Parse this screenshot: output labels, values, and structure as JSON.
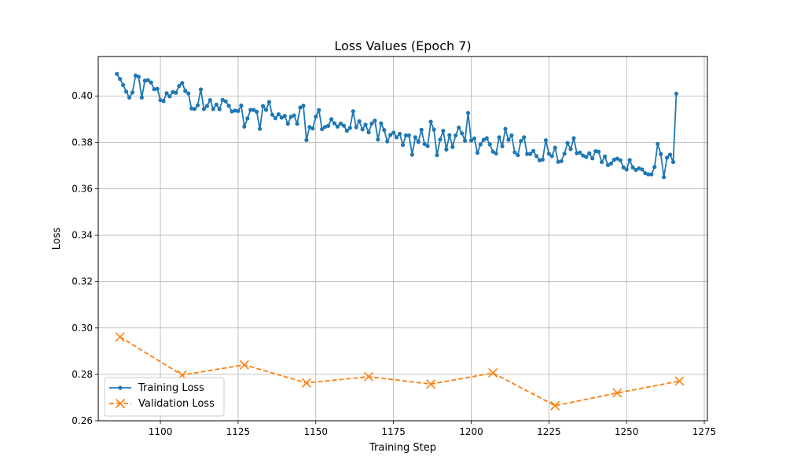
{
  "chart_data": {
    "type": "line",
    "title": "Loss Values (Epoch 7)",
    "xlabel": "Training Step",
    "ylabel": "Loss",
    "xlim": [
      1080,
      1276
    ],
    "ylim": [
      0.26,
      0.417
    ],
    "xticks": [
      1100,
      1125,
      1150,
      1175,
      1200,
      1225,
      1250,
      1275
    ],
    "yticks": [
      0.26,
      0.28,
      0.3,
      0.32,
      0.34,
      0.36,
      0.38,
      0.4
    ],
    "ytick_labels": [
      "0.26",
      "0.28",
      "0.30",
      "0.32",
      "0.34",
      "0.36",
      "0.38",
      "0.40"
    ],
    "grid": true,
    "legend_position": "lower-left",
    "series": [
      {
        "name": "Training Loss",
        "color": "#1f77b4",
        "linestyle": "solid",
        "marker": "circle",
        "x_start": 1086,
        "x_step": 1,
        "values": [
          0.4095,
          0.4073,
          0.4047,
          0.4019,
          0.3993,
          0.4015,
          0.4088,
          0.4083,
          0.3993,
          0.4066,
          0.4068,
          0.4058,
          0.4029,
          0.4031,
          0.3982,
          0.3978,
          0.4012,
          0.3998,
          0.4017,
          0.4014,
          0.4043,
          0.4056,
          0.4022,
          0.4011,
          0.3946,
          0.3944,
          0.396,
          0.4028,
          0.3944,
          0.3957,
          0.3982,
          0.3944,
          0.3963,
          0.3943,
          0.3983,
          0.3977,
          0.3958,
          0.3933,
          0.3937,
          0.3935,
          0.3959,
          0.3868,
          0.3903,
          0.394,
          0.394,
          0.3932,
          0.3858,
          0.3957,
          0.394,
          0.3974,
          0.3919,
          0.3904,
          0.3921,
          0.3907,
          0.3914,
          0.388,
          0.391,
          0.3916,
          0.388,
          0.395,
          0.3958,
          0.381,
          0.3866,
          0.386,
          0.3911,
          0.3939,
          0.3857,
          0.3867,
          0.3871,
          0.39,
          0.3882,
          0.3868,
          0.3881,
          0.3872,
          0.385,
          0.3862,
          0.3934,
          0.3865,
          0.3891,
          0.3856,
          0.3876,
          0.3843,
          0.3881,
          0.3894,
          0.3812,
          0.3882,
          0.3853,
          0.3804,
          0.3832,
          0.3842,
          0.3822,
          0.3837,
          0.3789,
          0.383,
          0.383,
          0.3747,
          0.3822,
          0.3802,
          0.3854,
          0.3793,
          0.3784,
          0.3889,
          0.3855,
          0.3745,
          0.3812,
          0.385,
          0.3769,
          0.3831,
          0.378,
          0.383,
          0.3864,
          0.3839,
          0.3807,
          0.3927,
          0.3808,
          0.3817,
          0.3755,
          0.3791,
          0.3811,
          0.3818,
          0.3791,
          0.376,
          0.3752,
          0.3822,
          0.3783,
          0.3858,
          0.3811,
          0.383,
          0.3757,
          0.3745,
          0.3806,
          0.3822,
          0.375,
          0.375,
          0.3763,
          0.3741,
          0.3723,
          0.3726,
          0.3809,
          0.3751,
          0.3741,
          0.3777,
          0.3716,
          0.3719,
          0.3751,
          0.3797,
          0.3771,
          0.3818,
          0.3753,
          0.3756,
          0.3743,
          0.3737,
          0.3753,
          0.3731,
          0.3762,
          0.376,
          0.3715,
          0.3739,
          0.3702,
          0.3709,
          0.3725,
          0.373,
          0.3723,
          0.3692,
          0.3683,
          0.3724,
          0.3692,
          0.3681,
          0.3688,
          0.3683,
          0.3667,
          0.3662,
          0.3662,
          0.3694,
          0.3793,
          0.375,
          0.365,
          0.3734,
          0.3747,
          0.3715,
          0.401
        ]
      },
      {
        "name": "Validation Loss",
        "color": "#ff7f0e",
        "linestyle": "dashed",
        "marker": "x",
        "x": [
          1087,
          1107,
          1127,
          1147,
          1167,
          1187,
          1207,
          1227,
          1247,
          1267
        ],
        "values": [
          0.2961,
          0.2797,
          0.2841,
          0.2763,
          0.279,
          0.2758,
          0.2806,
          0.2665,
          0.272,
          0.2771
        ]
      }
    ]
  }
}
